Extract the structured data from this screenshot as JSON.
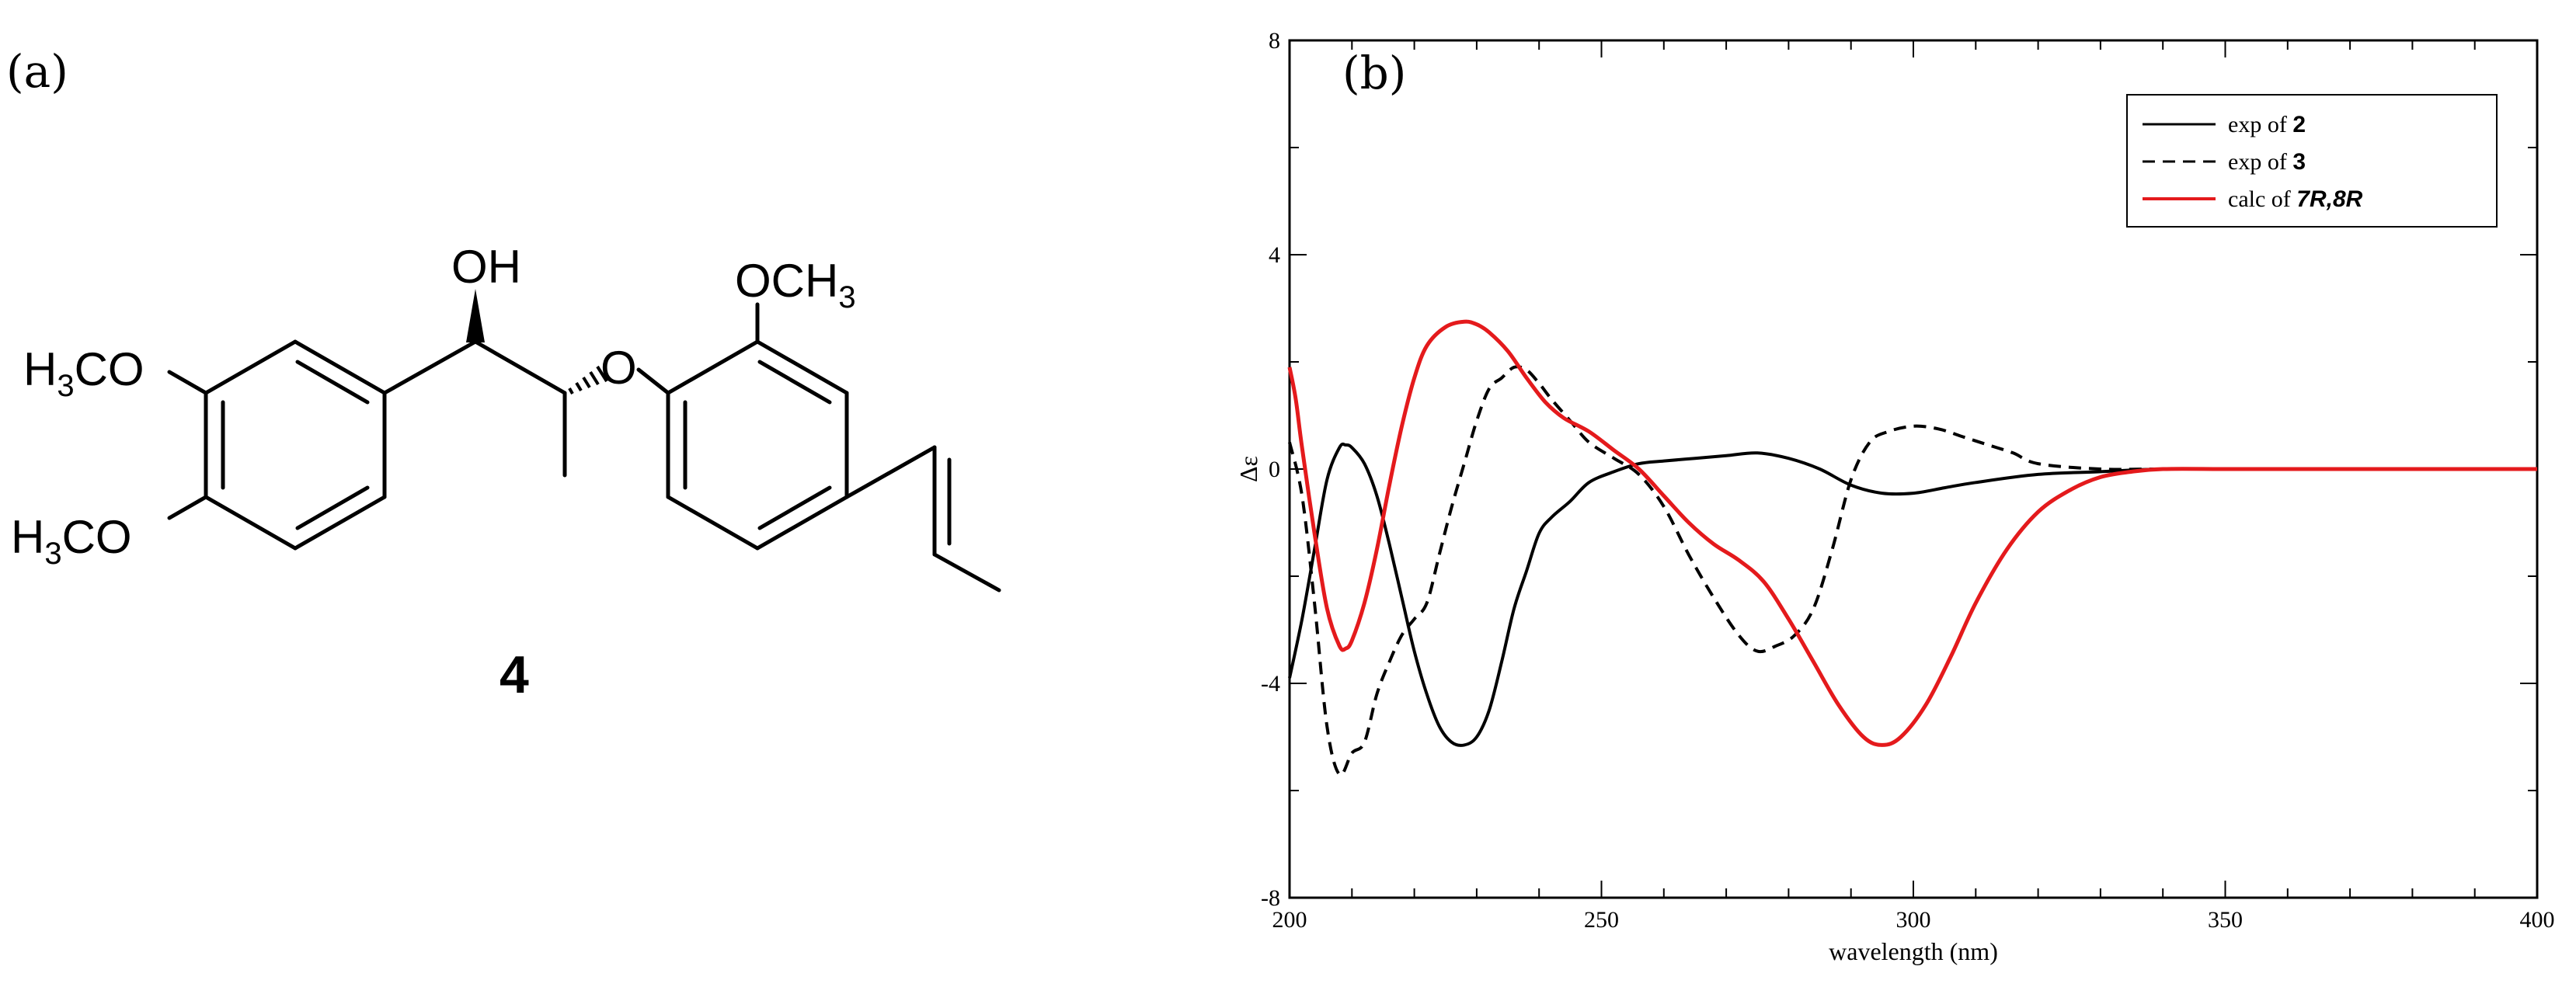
{
  "panels": {
    "a_label": "(a)",
    "b_label": "(b)"
  },
  "molecule": {
    "compound_number": "4",
    "labels": {
      "oh_O": "O",
      "oh_H": "H",
      "och3_top": "OCH",
      "och3_top_sub": "3",
      "ether_o": "O",
      "h3co_1_h": "H",
      "h3co_1_sub": "3",
      "h3co_1_rest": "CO",
      "h3co_2_h": "H",
      "h3co_2_sub": "3",
      "h3co_2_rest": "CO"
    }
  },
  "chart_data": {
    "type": "line",
    "xlabel": "wavelength (nm)",
    "ylabel": "Δε",
    "xlim": [
      200,
      400
    ],
    "ylim": [
      -8,
      8
    ],
    "xticks": [
      200,
      250,
      300,
      350,
      400
    ],
    "yticks": [
      -8,
      -4,
      0,
      4,
      8
    ],
    "legend_position": "top-right",
    "series": [
      {
        "name": "exp of 2",
        "name_prefix": "exp of ",
        "name_bold": "2",
        "style": "solid",
        "color": "#000000",
        "x": [
          200,
          202,
          204,
          206,
          208,
          209,
          210,
          212,
          214,
          216,
          218,
          220,
          222,
          224,
          226,
          228,
          230,
          232,
          234,
          236,
          238,
          240,
          242,
          245,
          248,
          252,
          256,
          260,
          265,
          270,
          275,
          280,
          285,
          290,
          295,
          300,
          305,
          310,
          320,
          330,
          340,
          360,
          380,
          400
        ],
        "y": [
          -3.9,
          -2.8,
          -1.5,
          -0.2,
          0.4,
          0.45,
          0.4,
          0.1,
          -0.5,
          -1.4,
          -2.4,
          -3.4,
          -4.2,
          -4.8,
          -5.1,
          -5.15,
          -5.0,
          -4.5,
          -3.6,
          -2.6,
          -1.9,
          -1.2,
          -0.9,
          -0.6,
          -0.25,
          -0.05,
          0.1,
          0.15,
          0.2,
          0.25,
          0.3,
          0.2,
          0.0,
          -0.3,
          -0.45,
          -0.45,
          -0.35,
          -0.25,
          -0.1,
          -0.05,
          0.0,
          0.0,
          0.0,
          0.0
        ]
      },
      {
        "name": "exp of 3",
        "name_prefix": "exp of ",
        "name_bold": "3",
        "style": "dashed",
        "color": "#000000",
        "x": [
          200,
          202,
          204,
          206,
          208,
          210,
          212,
          214,
          216,
          218,
          220,
          222,
          224,
          226,
          228,
          230,
          232,
          234,
          236,
          238,
          240,
          242,
          245,
          248,
          252,
          256,
          260,
          264,
          268,
          272,
          275,
          278,
          281,
          284,
          287,
          290,
          293,
          296,
          300,
          304,
          308,
          312,
          316,
          320,
          330,
          340,
          360,
          380,
          400
        ],
        "y": [
          0.5,
          -0.5,
          -2.5,
          -4.8,
          -5.7,
          -5.3,
          -5.1,
          -4.2,
          -3.6,
          -3.1,
          -2.8,
          -2.5,
          -1.6,
          -0.7,
          0.1,
          0.9,
          1.5,
          1.7,
          1.9,
          1.85,
          1.6,
          1.3,
          0.9,
          0.5,
          0.2,
          -0.1,
          -0.7,
          -1.6,
          -2.4,
          -3.1,
          -3.4,
          -3.3,
          -3.1,
          -2.6,
          -1.5,
          -0.2,
          0.5,
          0.7,
          0.8,
          0.75,
          0.6,
          0.45,
          0.3,
          0.1,
          0.0,
          0.0,
          0.0,
          0.0,
          0.0
        ]
      },
      {
        "name": "calc of 7R,8R",
        "name_prefix": "calc of ",
        "name_bold": "7R,8R",
        "style": "solid",
        "color": "#e41a1c",
        "x": [
          200,
          201,
          202,
          204,
          206,
          208,
          209,
          210,
          212,
          214,
          216,
          218,
          220,
          222,
          225,
          228,
          230,
          232,
          235,
          238,
          241,
          244,
          248,
          252,
          256,
          260,
          264,
          268,
          272,
          276,
          280,
          284,
          288,
          292,
          295,
          298,
          302,
          306,
          310,
          315,
          320,
          325,
          330,
          335,
          340,
          350,
          360,
          380,
          400
        ],
        "y": [
          1.9,
          1.3,
          0.4,
          -1.2,
          -2.6,
          -3.3,
          -3.35,
          -3.2,
          -2.5,
          -1.5,
          -0.3,
          0.8,
          1.7,
          2.3,
          2.65,
          2.75,
          2.7,
          2.55,
          2.2,
          1.7,
          1.25,
          0.95,
          0.7,
          0.35,
          0.0,
          -0.5,
          -1.0,
          -1.4,
          -1.7,
          -2.1,
          -2.8,
          -3.6,
          -4.4,
          -5.0,
          -5.15,
          -5.0,
          -4.4,
          -3.5,
          -2.5,
          -1.5,
          -0.8,
          -0.4,
          -0.15,
          -0.05,
          0.0,
          0.0,
          0.0,
          0.0,
          0.0
        ]
      }
    ]
  }
}
